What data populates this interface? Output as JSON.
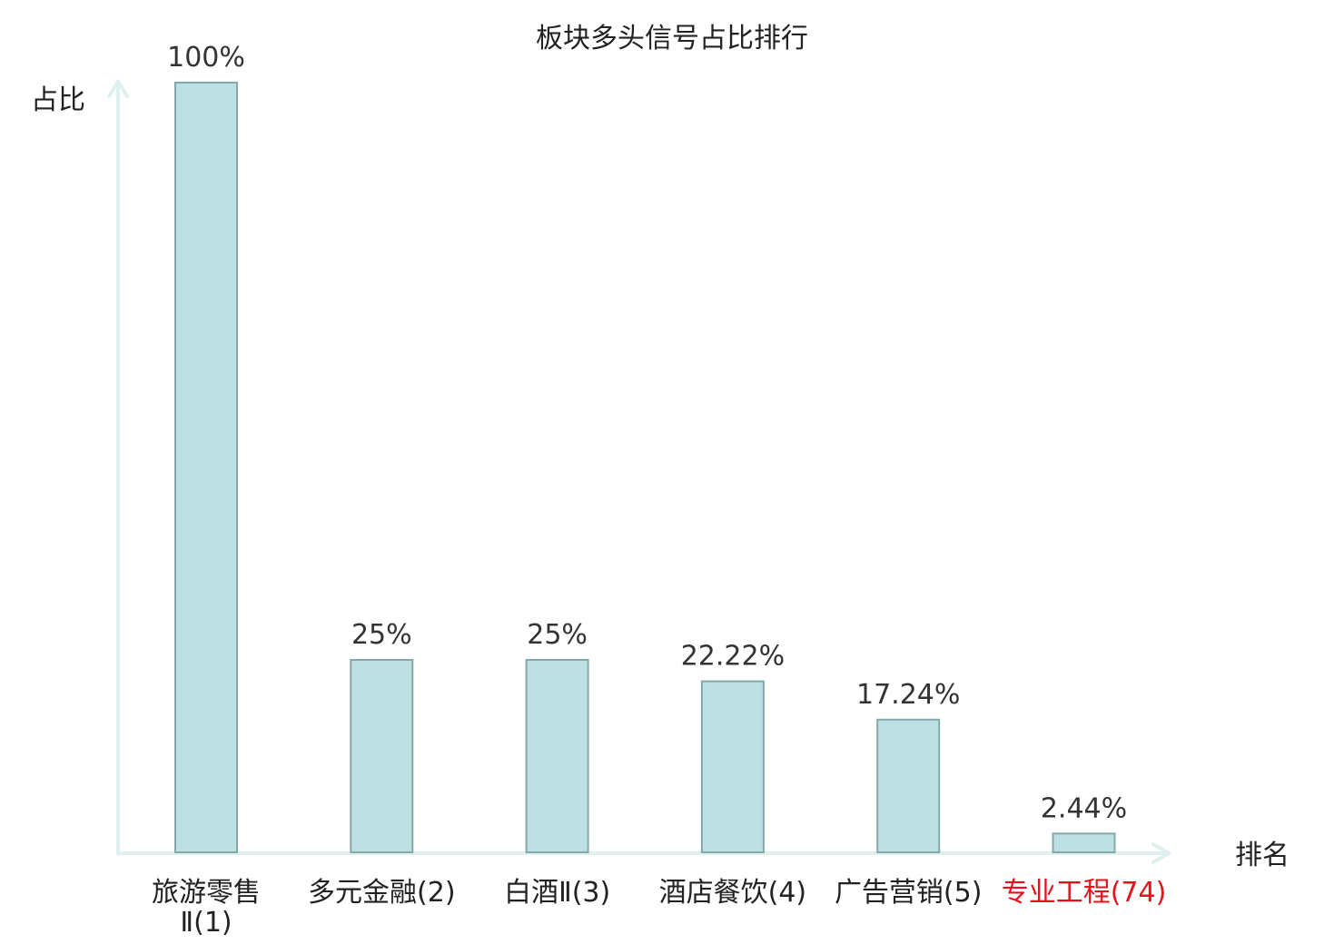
{
  "chart_data": {
    "type": "bar",
    "title": "板块多头信号占比排行",
    "ylabel": "占比",
    "xlabel": "排名",
    "ylim": [
      0,
      100
    ],
    "grid": false,
    "categories": [
      {
        "name": "旅游零售Ⅱ",
        "rank": "(1)",
        "lines": [
          "旅游零售",
          "Ⅱ(1)"
        ],
        "highlight": false
      },
      {
        "name": "多元金融",
        "rank": "(2)",
        "lines": [
          "多元金融(2)"
        ],
        "highlight": false
      },
      {
        "name": "白酒Ⅱ",
        "rank": "(3)",
        "lines": [
          "白酒Ⅱ(3)"
        ],
        "highlight": false
      },
      {
        "name": "酒店餐饮",
        "rank": "(4)",
        "lines": [
          "酒店餐饮(4)"
        ],
        "highlight": false
      },
      {
        "name": "广告营销",
        "rank": "(5)",
        "lines": [
          "广告营销(5)"
        ],
        "highlight": false
      },
      {
        "name": "专业工程",
        "rank": "(74)",
        "lines": [
          "专业工程(74)"
        ],
        "highlight": true
      }
    ],
    "values": [
      100,
      25,
      25,
      22.22,
      17.24,
      2.44
    ],
    "value_labels": [
      "100%",
      "25%",
      "25%",
      "22.22%",
      "17.24%",
      "2.44%"
    ],
    "colors": {
      "bar_fill": "#bde0e3",
      "bar_stroke": "#86a8ab",
      "axis": "#dff1ee",
      "highlight_text": "#e8101b"
    }
  }
}
